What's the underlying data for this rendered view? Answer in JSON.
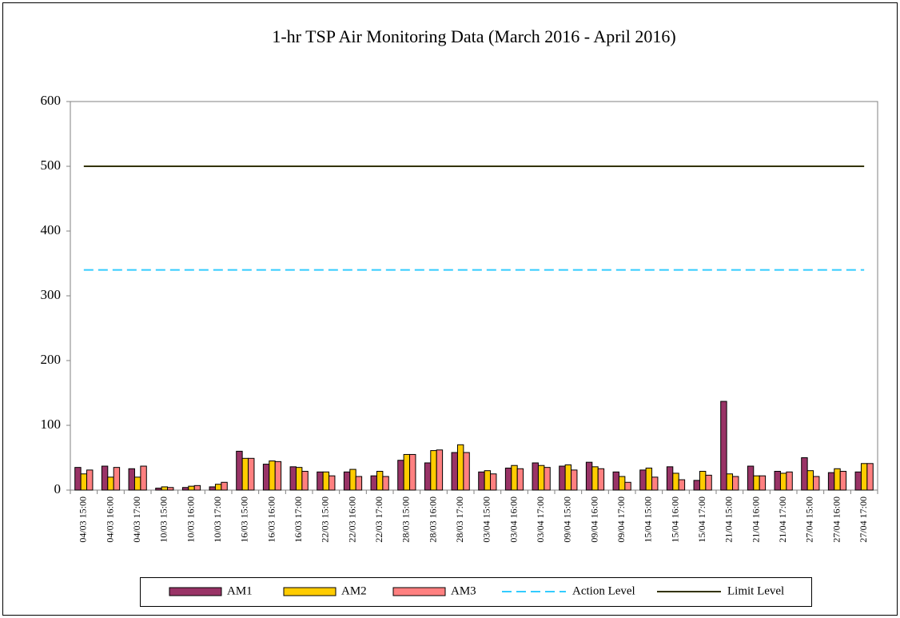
{
  "chart_data": {
    "type": "bar",
    "title": "1-hr TSP Air Monitoring Data (March 2016 - April 2016)",
    "categories": [
      "04/03 15:00",
      "04/03 16:00",
      "04/03 17:00",
      "10/03 15:00",
      "10/03 16:00",
      "10/03 17:00",
      "16/03 15:00",
      "16/03 16:00",
      "16/03 17:00",
      "22/03 15:00",
      "22/03 16:00",
      "22/03 17:00",
      "28/03 15:00",
      "28/03 16:00",
      "28/03 17:00",
      "03/04 15:00",
      "03/04 16:00",
      "03/04 17:00",
      "09/04 15:00",
      "09/04 16:00",
      "09/04 17:00",
      "15/04 15:00",
      "15/04 16:00",
      "15/04 17:00",
      "21/04 15:00",
      "21/04 16:00",
      "21/04 17:00",
      "27/04 15:00",
      "27/04 16:00",
      "27/04 17:00"
    ],
    "series": [
      {
        "name": "AM1",
        "type": "bar",
        "color": "#993366",
        "values": [
          35,
          37,
          33,
          3,
          4,
          5,
          60,
          40,
          36,
          28,
          28,
          22,
          46,
          42,
          58,
          28,
          34,
          42,
          37,
          43,
          28,
          31,
          36,
          15,
          137,
          37,
          29,
          50,
          27,
          28
        ]
      },
      {
        "name": "AM2",
        "type": "bar",
        "color": "#ffcc00",
        "values": [
          25,
          20,
          20,
          5,
          6,
          9,
          49,
          45,
          35,
          28,
          32,
          29,
          55,
          61,
          70,
          30,
          38,
          38,
          39,
          36,
          21,
          34,
          26,
          29,
          25,
          22,
          26,
          30,
          33,
          41
        ]
      },
      {
        "name": "AM3",
        "type": "bar",
        "color": "#ff8080",
        "values": [
          31,
          35,
          37,
          4,
          7,
          12,
          49,
          44,
          29,
          22,
          21,
          21,
          55,
          62,
          58,
          25,
          33,
          35,
          31,
          33,
          12,
          20,
          16,
          23,
          21,
          22,
          28,
          21,
          29,
          41
        ]
      },
      {
        "name": "Action Level",
        "type": "line",
        "style": "dashed",
        "color": "#33ccff",
        "values": [
          340,
          340,
          340,
          340,
          340,
          340,
          340,
          340,
          340,
          340,
          340,
          340,
          340,
          340,
          340,
          340,
          340,
          340,
          340,
          340,
          340,
          340,
          340,
          340,
          340,
          340,
          340,
          340,
          340,
          340
        ]
      },
      {
        "name": "Limit Level",
        "type": "line",
        "style": "solid",
        "color": "#333300",
        "values": [
          500,
          500,
          500,
          500,
          500,
          500,
          500,
          500,
          500,
          500,
          500,
          500,
          500,
          500,
          500,
          500,
          500,
          500,
          500,
          500,
          500,
          500,
          500,
          500,
          500,
          500,
          500,
          500,
          500,
          500
        ]
      }
    ],
    "ylim": [
      0,
      600
    ],
    "yticks": [
      0,
      100,
      200,
      300,
      400,
      500,
      600
    ],
    "grid": false,
    "legend": "bottom"
  }
}
